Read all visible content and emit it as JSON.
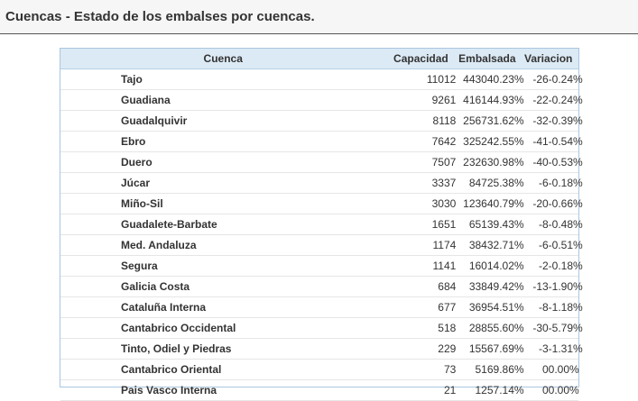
{
  "page": {
    "title": "Cuencas - Estado de los embalses por cuencas."
  },
  "table": {
    "headers": {
      "cuenca": "Cuenca",
      "capacidad": "Capacidad",
      "embalsada": "Embalsada",
      "variacion": "Variacion"
    },
    "rows": [
      {
        "cuenca": "Tajo",
        "capacidad": "11012",
        "embalsada": "4430",
        "embalsada_pct": "40.23%",
        "variacion": "-26",
        "variacion_pct": "-0.24%"
      },
      {
        "cuenca": "Guadiana",
        "capacidad": "9261",
        "embalsada": "4161",
        "embalsada_pct": "44.93%",
        "variacion": "-22",
        "variacion_pct": "-0.24%"
      },
      {
        "cuenca": "Guadalquivir",
        "capacidad": "8118",
        "embalsada": "2567",
        "embalsada_pct": "31.62%",
        "variacion": "-32",
        "variacion_pct": "-0.39%"
      },
      {
        "cuenca": "Ebro",
        "capacidad": "7642",
        "embalsada": "3252",
        "embalsada_pct": "42.55%",
        "variacion": "-41",
        "variacion_pct": "-0.54%"
      },
      {
        "cuenca": "Duero",
        "capacidad": "7507",
        "embalsada": "2326",
        "embalsada_pct": "30.98%",
        "variacion": "-40",
        "variacion_pct": "-0.53%"
      },
      {
        "cuenca": "Júcar",
        "capacidad": "3337",
        "embalsada": "847",
        "embalsada_pct": "25.38%",
        "variacion": "-6",
        "variacion_pct": "-0.18%"
      },
      {
        "cuenca": "Miño-Sil",
        "capacidad": "3030",
        "embalsada": "1236",
        "embalsada_pct": "40.79%",
        "variacion": "-20",
        "variacion_pct": "-0.66%"
      },
      {
        "cuenca": "Guadalete-Barbate",
        "capacidad": "1651",
        "embalsada": "651",
        "embalsada_pct": "39.43%",
        "variacion": "-8",
        "variacion_pct": "-0.48%"
      },
      {
        "cuenca": "Med. Andaluza",
        "capacidad": "1174",
        "embalsada": "384",
        "embalsada_pct": "32.71%",
        "variacion": "-6",
        "variacion_pct": "-0.51%"
      },
      {
        "cuenca": "Segura",
        "capacidad": "1141",
        "embalsada": "160",
        "embalsada_pct": "14.02%",
        "variacion": "-2",
        "variacion_pct": "-0.18%"
      },
      {
        "cuenca": "Galicia Costa",
        "capacidad": "684",
        "embalsada": "338",
        "embalsada_pct": "49.42%",
        "variacion": "-13",
        "variacion_pct": "-1.90%"
      },
      {
        "cuenca": "Cataluña Interna",
        "capacidad": "677",
        "embalsada": "369",
        "embalsada_pct": "54.51%",
        "variacion": "-8",
        "variacion_pct": "-1.18%"
      },
      {
        "cuenca": "Cantabrico Occidental",
        "capacidad": "518",
        "embalsada": "288",
        "embalsada_pct": "55.60%",
        "variacion": "-30",
        "variacion_pct": "-5.79%"
      },
      {
        "cuenca": "Tinto, Odiel y Piedras",
        "capacidad": "229",
        "embalsada": "155",
        "embalsada_pct": "67.69%",
        "variacion": "-3",
        "variacion_pct": "-1.31%"
      },
      {
        "cuenca": "Cantabrico Oriental",
        "capacidad": "73",
        "embalsada": "51",
        "embalsada_pct": "69.86%",
        "variacion": "0",
        "variacion_pct": "0.00%"
      },
      {
        "cuenca": "Pais Vasco Interna",
        "capacidad": "21",
        "embalsada": "12",
        "embalsada_pct": "57.14%",
        "variacion": "0",
        "variacion_pct": "0.00%"
      }
    ]
  }
}
